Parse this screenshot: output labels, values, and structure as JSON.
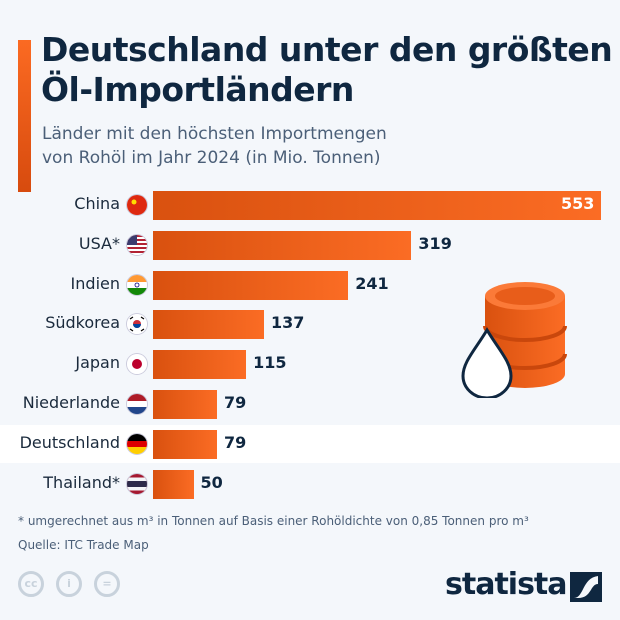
{
  "title": "Deutschland unter den größten Öl-Importländern",
  "subtitle_line1": "Länder mit den höchsten Importmengen",
  "subtitle_line2": "von Rohöl im Jahr 2024 (in Mio. Tonnen)",
  "chart_data": {
    "type": "bar",
    "orientation": "horizontal",
    "categories": [
      "China",
      "USA*",
      "Indien",
      "Südkorea",
      "Japan",
      "Niederlande",
      "Deutschland",
      "Thailand*"
    ],
    "values": [
      553,
      319,
      241,
      137,
      115,
      79,
      79,
      50
    ],
    "highlight": "Deutschland",
    "bar_color": "#f26522",
    "unit": "Mio. Tonnen"
  },
  "footnote": "* umgerechnet aus m³ in Tonnen auf Basis einer Rohöldichte von 0,85 Tonnen pro m³",
  "source": "Quelle: ITC Trade Map",
  "brand": "statista",
  "license_icons": [
    "cc-icon",
    "by-icon",
    "nd-icon"
  ]
}
